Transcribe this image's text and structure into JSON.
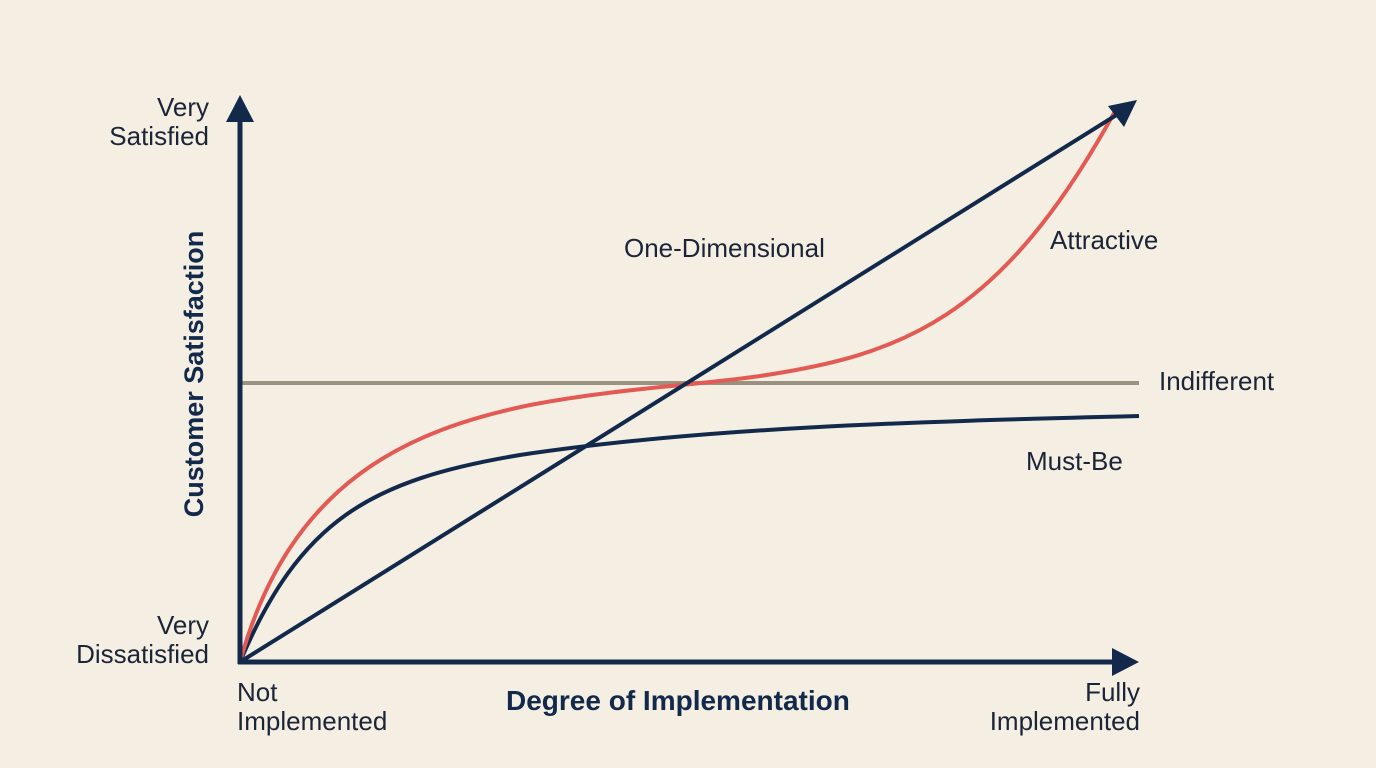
{
  "diagram": {
    "type": "kano-model",
    "y_axis": {
      "label": "Customer Satisfaction",
      "top_label_line1": "Very",
      "top_label_line2": "Satisfied",
      "bottom_label_line1": "Very",
      "bottom_label_line2": "Dissatisfied"
    },
    "x_axis": {
      "label": "Degree of Implementation",
      "start_label_line1": "Not",
      "start_label_line2": "Implemented",
      "end_label_line1": "Fully",
      "end_label_line2": "Implemented"
    },
    "curves": [
      {
        "key": "one_dimensional",
        "label": "One-Dimensional",
        "color": "#13294b"
      },
      {
        "key": "attractive",
        "label": "Attractive",
        "color": "#e35a55"
      },
      {
        "key": "indifferent",
        "label": "Indifferent",
        "color": "#9a9281"
      },
      {
        "key": "must_be",
        "label": "Must-Be",
        "color": "#13294b"
      }
    ],
    "colors": {
      "background": "#f4efe2",
      "axis": "#13294b",
      "text": "#1c2438"
    }
  }
}
